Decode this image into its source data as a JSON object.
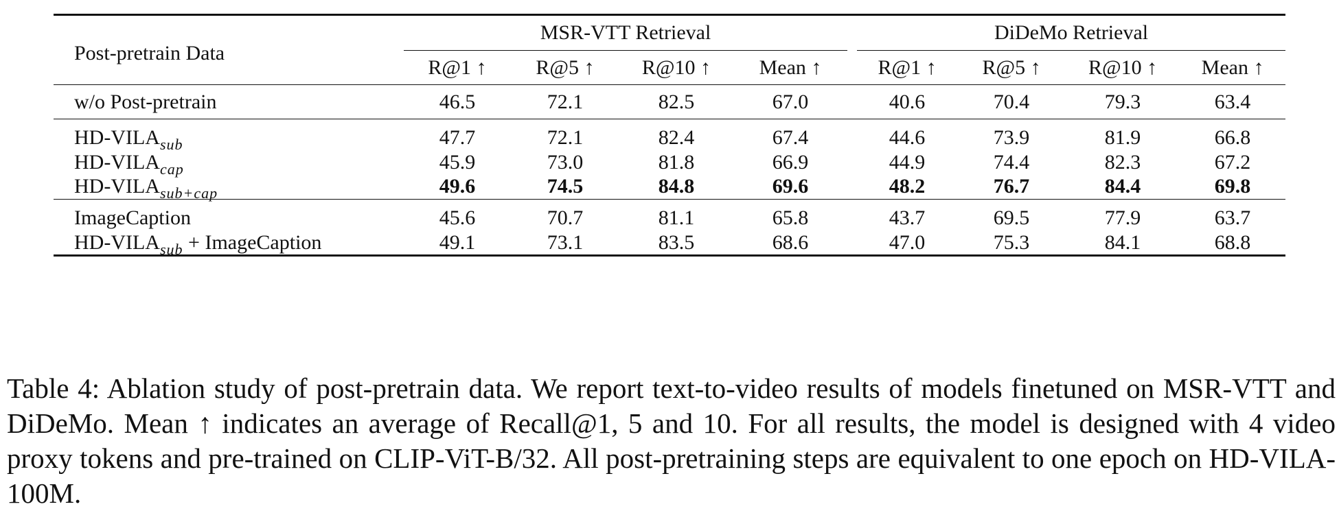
{
  "table": {
    "row_header": "Post-pretrain Data",
    "groups": [
      "MSR-VTT Retrieval",
      "DiDeMo Retrieval"
    ],
    "metrics": [
      "R@1 ↑",
      "R@5 ↑",
      "R@10 ↑",
      "Mean ↑",
      "R@1 ↑",
      "R@5 ↑",
      "R@10 ↑",
      "Mean ↑"
    ],
    "rows": [
      {
        "name": "w/o Post-pretrain",
        "sub": "",
        "suffix": "",
        "values": [
          "46.5",
          "72.1",
          "82.5",
          "67.0",
          "40.6",
          "70.4",
          "79.3",
          "63.4"
        ],
        "bold": false
      },
      {
        "name": "HD-VILA",
        "sub": "sub",
        "suffix": "",
        "values": [
          "47.7",
          "72.1",
          "82.4",
          "67.4",
          "44.6",
          "73.9",
          "81.9",
          "66.8"
        ],
        "bold": false
      },
      {
        "name": "HD-VILA",
        "sub": "cap",
        "suffix": "",
        "values": [
          "45.9",
          "73.0",
          "81.8",
          "66.9",
          "44.9",
          "74.4",
          "82.3",
          "67.2"
        ],
        "bold": false
      },
      {
        "name": "HD-VILA",
        "sub": "sub+cap",
        "suffix": "",
        "values": [
          "49.6",
          "74.5",
          "84.8",
          "69.6",
          "48.2",
          "76.7",
          "84.4",
          "69.8"
        ],
        "bold": true
      },
      {
        "name": "ImageCaption",
        "sub": "",
        "suffix": "",
        "values": [
          "45.6",
          "70.7",
          "81.1",
          "65.8",
          "43.7",
          "69.5",
          "77.9",
          "63.7"
        ],
        "bold": false
      },
      {
        "name": "HD-VILA",
        "sub": "sub",
        "suffix": " + ImageCaption",
        "values": [
          "49.1",
          "73.1",
          "83.5",
          "68.6",
          "47.0",
          "75.3",
          "84.1",
          "68.8"
        ],
        "bold": false
      }
    ]
  },
  "caption": "Table 4: Ablation study of post-pretrain data. We report text-to-video results of models finetuned on MSR-VTT and DiDeMo. Mean ↑ indicates an average of Recall@1, 5 and 10. For all results, the model is designed with 4 video proxy tokens and pre-trained on CLIP-ViT-B/32. All post-pretraining steps are equivalent to one epoch on HD-VILA-100M."
}
